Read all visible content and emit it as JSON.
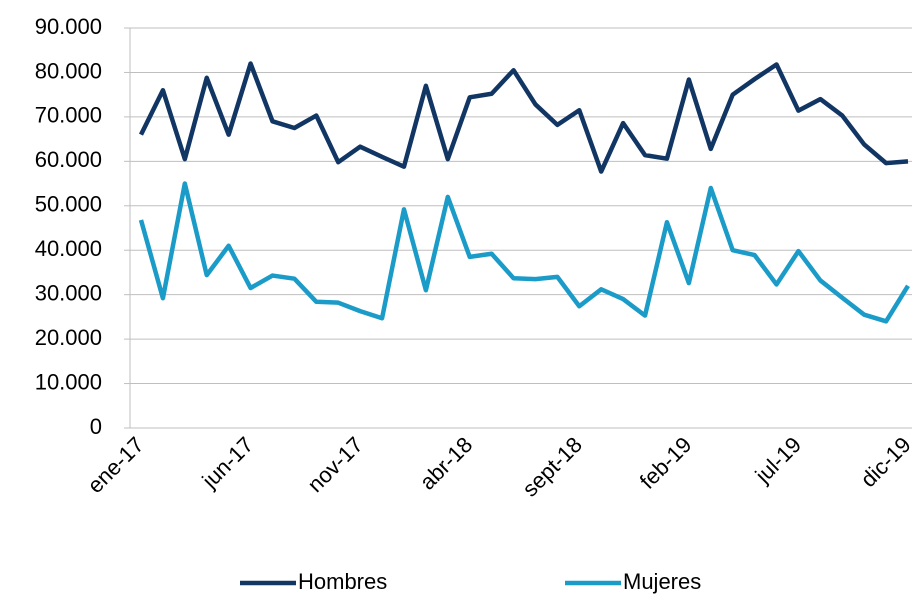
{
  "chart_data": {
    "type": "line",
    "categories": [
      "ene-17",
      null,
      null,
      null,
      null,
      "jun-17",
      null,
      null,
      null,
      null,
      "nov-17",
      null,
      null,
      null,
      null,
      "abr-18",
      null,
      null,
      null,
      null,
      "sept-18",
      null,
      null,
      null,
      null,
      "feb-19",
      null,
      null,
      null,
      null,
      "jul-19",
      null,
      null,
      null,
      null,
      "dic-19"
    ],
    "series": [
      {
        "name": "Hombres",
        "color": "#123664",
        "values": [
          66000,
          76000,
          60500,
          78800,
          66000,
          82000,
          69000,
          67500,
          70300,
          59800,
          63300,
          61000,
          58800,
          77000,
          60500,
          74400,
          75200,
          80500,
          72800,
          68200,
          71500,
          57700,
          68600,
          61400,
          60600,
          78400,
          62800,
          75000,
          78500,
          81800,
          71400,
          74000,
          70300,
          63800,
          59600,
          60000
        ]
      },
      {
        "name": "Mujeres",
        "color": "#1b9bc8",
        "values": [
          46800,
          29200,
          55000,
          34400,
          41000,
          31500,
          34300,
          33600,
          28400,
          28200,
          26300,
          24700,
          49200,
          31000,
          52000,
          38500,
          39200,
          33700,
          33500,
          34000,
          27400,
          31200,
          29000,
          25300,
          46300,
          32600,
          54000,
          40000,
          38900,
          32300,
          39800,
          33200,
          29300,
          25500,
          24000,
          32000
        ]
      }
    ],
    "ylim": [
      0,
      90000
    ],
    "yticks": [
      0,
      {
        "value": 10000,
        "label": "10.000"
      },
      {
        "value": 20000,
        "label": "20.000"
      },
      {
        "value": 30000,
        "label": "30.000"
      },
      {
        "value": 40000,
        "label": "40.000"
      },
      {
        "value": 50000,
        "label": "50.000"
      },
      {
        "value": 60000,
        "label": "60.000"
      },
      {
        "value": 70000,
        "label": "70.000"
      },
      {
        "value": 80000,
        "label": "80.000"
      },
      {
        "value": 90000,
        "label": "90.000"
      }
    ],
    "grid": true,
    "legend": "bottom"
  }
}
